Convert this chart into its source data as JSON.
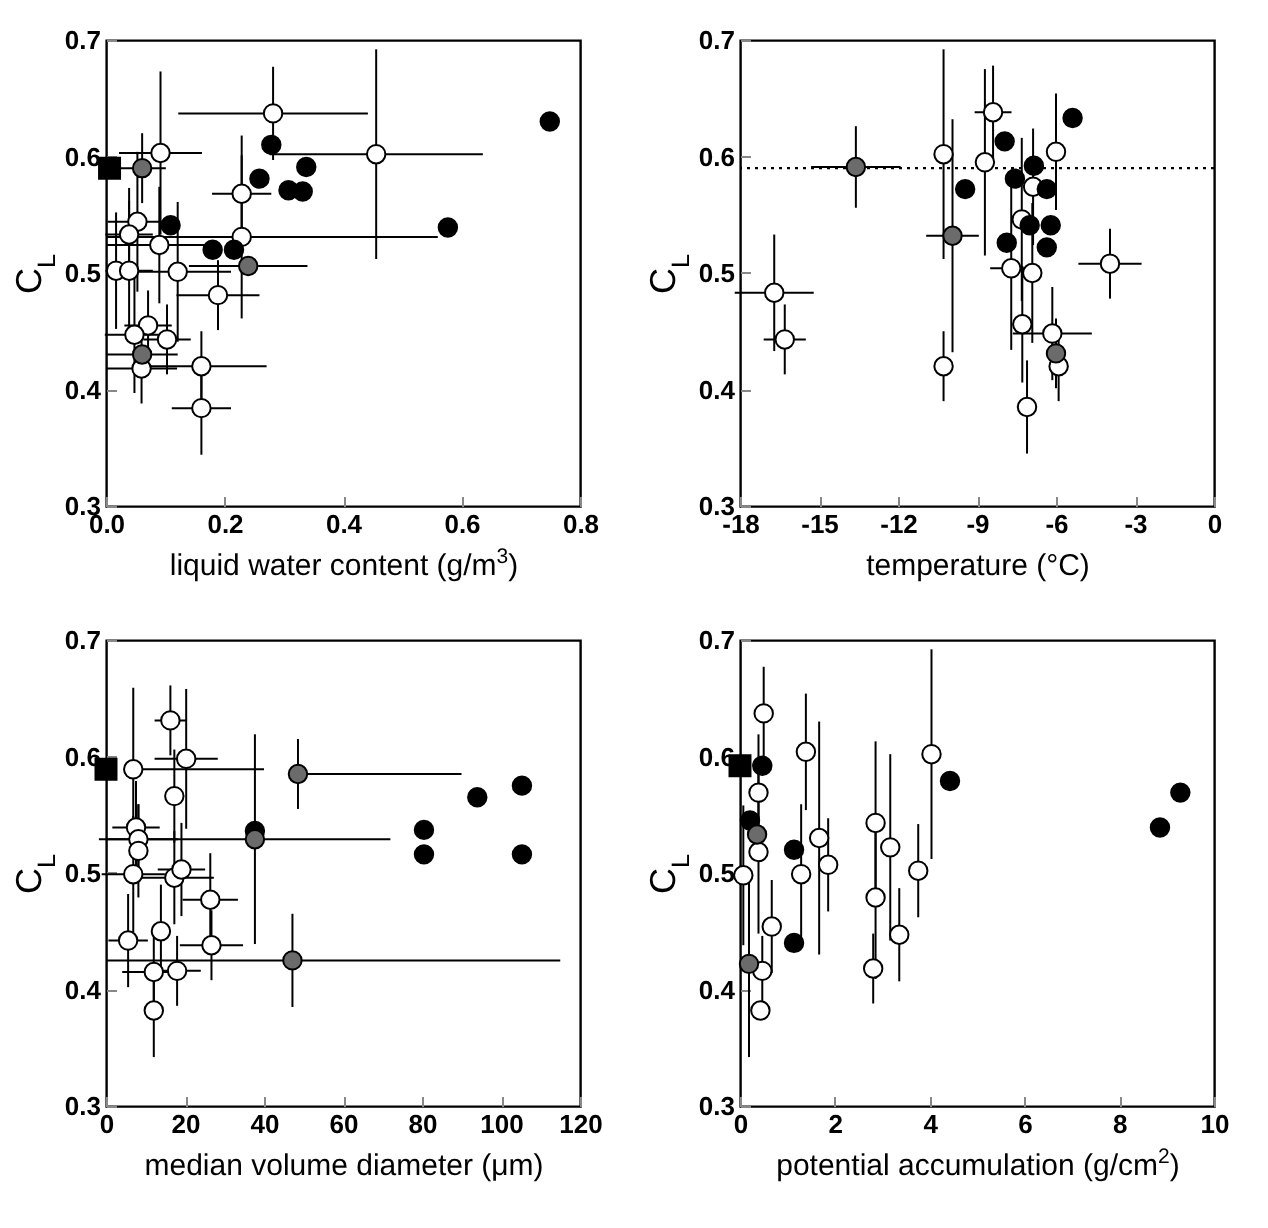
{
  "chart_data": [
    {
      "type": "scatter",
      "xlabel": "liquid water content (g/m$^{3}$)",
      "ylabel": "C$_{L}$",
      "xlim": [
        0,
        0.8
      ],
      "xticks": [
        {
          "value": 0,
          "label": "0.0"
        },
        0.2,
        0.4,
        0.6,
        0.8
      ],
      "ylim": [
        0.3,
        0.7
      ],
      "yticks": [
        0.3,
        0.4,
        0.5,
        0.6,
        0.7
      ],
      "grid": false,
      "series": [
        {
          "color": "#ffffff",
          "marker": "circle",
          "x": [
            0.282,
            0.456,
            0.092,
            0.229,
            0.229,
            0.053,
            0.039,
            0.09,
            0.017,
            0.039,
            0.121,
            0.189,
            0.071,
            0.103,
            0.048,
            0.06,
            0.161,
            0.161
          ],
          "values": [
            0.637,
            0.602,
            0.603,
            0.568,
            0.531,
            0.544,
            0.533,
            0.524,
            0.502,
            0.502,
            0.501,
            0.481,
            0.455,
            0.443,
            0.447,
            0.418,
            0.42,
            0.384
          ],
          "errors": [
            0.04,
            0.09,
            0.07,
            0.05,
            0.07,
            0.06,
            0.04,
            0.05,
            0.05,
            0.06,
            0.06,
            0.03,
            0.03,
            0.03,
            0.05,
            0.03,
            0.03,
            0.04
          ],
          "xerrors": [
            0.16,
            0.18,
            0.07,
            0.05,
            [
              0,
              0.56
            ],
            0.05,
            0.04,
            0.09,
            null,
            0.04,
            0.09,
            0.07,
            0.04,
            0.04,
            0.05,
            0.06,
            0.11,
            0.05
          ]
        },
        {
          "color": "#000000",
          "marker": "circle",
          "x": [
            0.749,
            0.279,
            0.259,
            0.338,
            0.308,
            0.332,
            0.577,
            0.109,
            0.18,
            0.216
          ],
          "values": [
            0.63,
            0.61,
            0.581,
            0.591,
            0.571,
            0.57,
            0.539,
            0.541,
            0.52,
            0.52
          ]
        },
        {
          "color": "#6b6b6b",
          "marker": "circle",
          "x": [
            0.061,
            0.24,
            0.061
          ],
          "values": [
            0.59,
            0.506,
            0.43
          ],
          "errors": [
            0.03,
            null,
            null
          ],
          "xerrors": [
            0.04,
            0.1,
            0.06
          ]
        },
        {
          "color": "#000000",
          "marker": "square",
          "x": [
            0.006
          ],
          "values": [
            0.59
          ]
        }
      ]
    },
    {
      "type": "scatter",
      "xlabel": "temperature (°C)",
      "ylabel": "C$_{L}$",
      "xlim": [
        -18,
        0
      ],
      "xticks": [
        -18,
        -15,
        -12,
        -9,
        -6,
        -3,
        0
      ],
      "ylim": [
        0.3,
        0.7
      ],
      "yticks": [
        0.3,
        0.4,
        0.5,
        0.6,
        0.7
      ],
      "grid": false,
      "ref_lines": [
        {
          "axis": "y",
          "value": 0.59,
          "line_style": "dotted"
        }
      ],
      "series": [
        {
          "color": "#ffffff",
          "marker": "circle",
          "x": [
            -8.39,
            -10.27,
            -8.7,
            -6.0,
            -6.87,
            -7.3,
            -7.7,
            -6.9,
            -3.95,
            -16.7,
            -16.3,
            -10.27,
            -7.28,
            -6.14,
            -5.9,
            -7.1
          ],
          "values": [
            0.638,
            0.602,
            0.595,
            0.604,
            0.574,
            0.546,
            0.504,
            0.5,
            0.508,
            0.483,
            0.443,
            0.42,
            0.456,
            0.448,
            0.42,
            0.385
          ],
          "errors": [
            0.04,
            0.09,
            0.08,
            0.05,
            0.05,
            0.07,
            0.07,
            0.06,
            0.03,
            0.05,
            0.03,
            0.03,
            0.05,
            0.04,
            0.03,
            0.04
          ],
          "xerrors": [
            0.7,
            null,
            null,
            null,
            null,
            null,
            0.8,
            null,
            1.2,
            1.5,
            0.8,
            null,
            null,
            1.5,
            null,
            null
          ]
        },
        {
          "color": "#000000",
          "marker": "circle",
          "x": [
            -5.37,
            -7.95,
            -9.45,
            -7.56,
            -6.84,
            -6.35,
            -7.0,
            -6.2,
            -7.87,
            -6.35
          ],
          "values": [
            0.633,
            0.613,
            0.572,
            0.581,
            0.592,
            0.572,
            0.541,
            0.541,
            0.526,
            0.522
          ]
        },
        {
          "color": "#6b6b6b",
          "marker": "circle",
          "x": [
            -13.6,
            -9.93,
            -6.0
          ],
          "values": [
            0.591,
            0.532,
            0.431
          ],
          "errors": [
            0.035,
            0.1,
            0.03
          ],
          "xerrors": [
            1.7,
            1,
            null
          ]
        }
      ]
    },
    {
      "type": "scatter",
      "xlabel": "median volume diameter (μm)",
      "ylabel": "C$_{L}$",
      "xlim": [
        0,
        120
      ],
      "xticks": [
        0,
        20,
        40,
        60,
        80,
        100,
        120
      ],
      "ylim": [
        0.3,
        0.7
      ],
      "yticks": [
        0.3,
        0.4,
        0.5,
        0.6,
        0.7
      ],
      "grid": false,
      "series": [
        {
          "color": "#ffffff",
          "marker": "circle",
          "x": [
            16.3,
            20.3,
            6.9,
            17.3,
            7.6,
            8.2,
            8.2,
            6.9,
            17.3,
            19.1,
            26.4,
            5.6,
            13.9,
            26.7,
            12.1,
            18.0,
            12.1
          ],
          "values": [
            0.631,
            0.598,
            0.589,
            0.566,
            0.539,
            0.529,
            0.519,
            0.499,
            0.496,
            0.503,
            0.477,
            0.442,
            0.45,
            0.438,
            0.415,
            0.416,
            0.382
          ],
          "errors": [
            0.03,
            0.06,
            0.07,
            0.04,
            0.04,
            0.03,
            0.04,
            0.05,
            0.04,
            0.04,
            0.04,
            0.04,
            0.04,
            0.03,
            0.04,
            0.03,
            0.04
          ],
          "xerrors": [
            4,
            8,
            [
              6.9,
              40
            ],
            null,
            6,
            10,
            null,
            8,
            10,
            6,
            7,
            5,
            null,
            8,
            8,
            6,
            null
          ]
        },
        {
          "color": "#000000",
          "marker": "circle",
          "x": [
            37.7,
            80.5,
            80.5,
            94.0,
            105.3,
            105.3
          ],
          "values": [
            0.536,
            0.537,
            0.516,
            0.565,
            0.575,
            0.516
          ]
        },
        {
          "color": "#6b6b6b",
          "marker": "circle",
          "x": [
            48.6,
            37.7,
            47.2
          ],
          "values": [
            0.585,
            0.529,
            0.425
          ],
          "errors": [
            0.03,
            0.09,
            0.04
          ],
          "xerrors": [
            [
              48.6,
              90
            ],
            [
              0,
              72
            ],
            [
              0,
              115
            ]
          ]
        },
        {
          "color": "#000000",
          "marker": "square",
          "x": [
            0
          ],
          "values": [
            0.589
          ]
        }
      ]
    },
    {
      "type": "scatter",
      "xlabel": "potential accumulation (g/cm$^{2}$)",
      "ylabel": "C$_{L}$",
      "xlim": [
        0,
        10
      ],
      "xticks": [
        0,
        2,
        4,
        6,
        8,
        10
      ],
      "ylim": [
        0.3,
        0.7
      ],
      "yticks": [
        0.3,
        0.4,
        0.5,
        0.6,
        0.7
      ],
      "grid": false,
      "series": [
        {
          "color": "#ffffff",
          "marker": "circle",
          "x": [
            0.5,
            1.39,
            4.04,
            0.39,
            0.39,
            0.07,
            1.29,
            1.67,
            1.86,
            2.86,
            2.86,
            2.81,
            3.17,
            3.36,
            3.76,
            0.67,
            0.47,
            0.43
          ],
          "values": [
            0.637,
            0.604,
            0.602,
            0.569,
            0.518,
            0.498,
            0.499,
            0.53,
            0.507,
            0.543,
            0.479,
            0.418,
            0.522,
            0.447,
            0.502,
            0.454,
            0.416,
            0.382
          ],
          "errors": [
            0.04,
            0.05,
            0.09,
            0.05,
            0.07,
            0.06,
            0.06,
            0.1,
            0.04,
            0.07,
            0.07,
            0.03,
            0.08,
            0.04,
            0.04,
            0.04,
            0.03,
            null
          ]
        },
        {
          "color": "#000000",
          "marker": "circle",
          "x": [
            0.47,
            4.43,
            9.29,
            8.86,
            1.14,
            1.14,
            0.21
          ],
          "values": [
            0.592,
            0.579,
            0.569,
            0.539,
            0.44,
            0.52,
            0.545
          ]
        },
        {
          "color": "#6b6b6b",
          "marker": "circle",
          "x": [
            0.19,
            0.36
          ],
          "values": [
            0.422,
            0.533
          ],
          "errors": [
            0.08,
            null
          ]
        },
        {
          "color": "#000000",
          "marker": "square",
          "x": [
            0
          ],
          "values": [
            0.592
          ]
        }
      ]
    }
  ]
}
